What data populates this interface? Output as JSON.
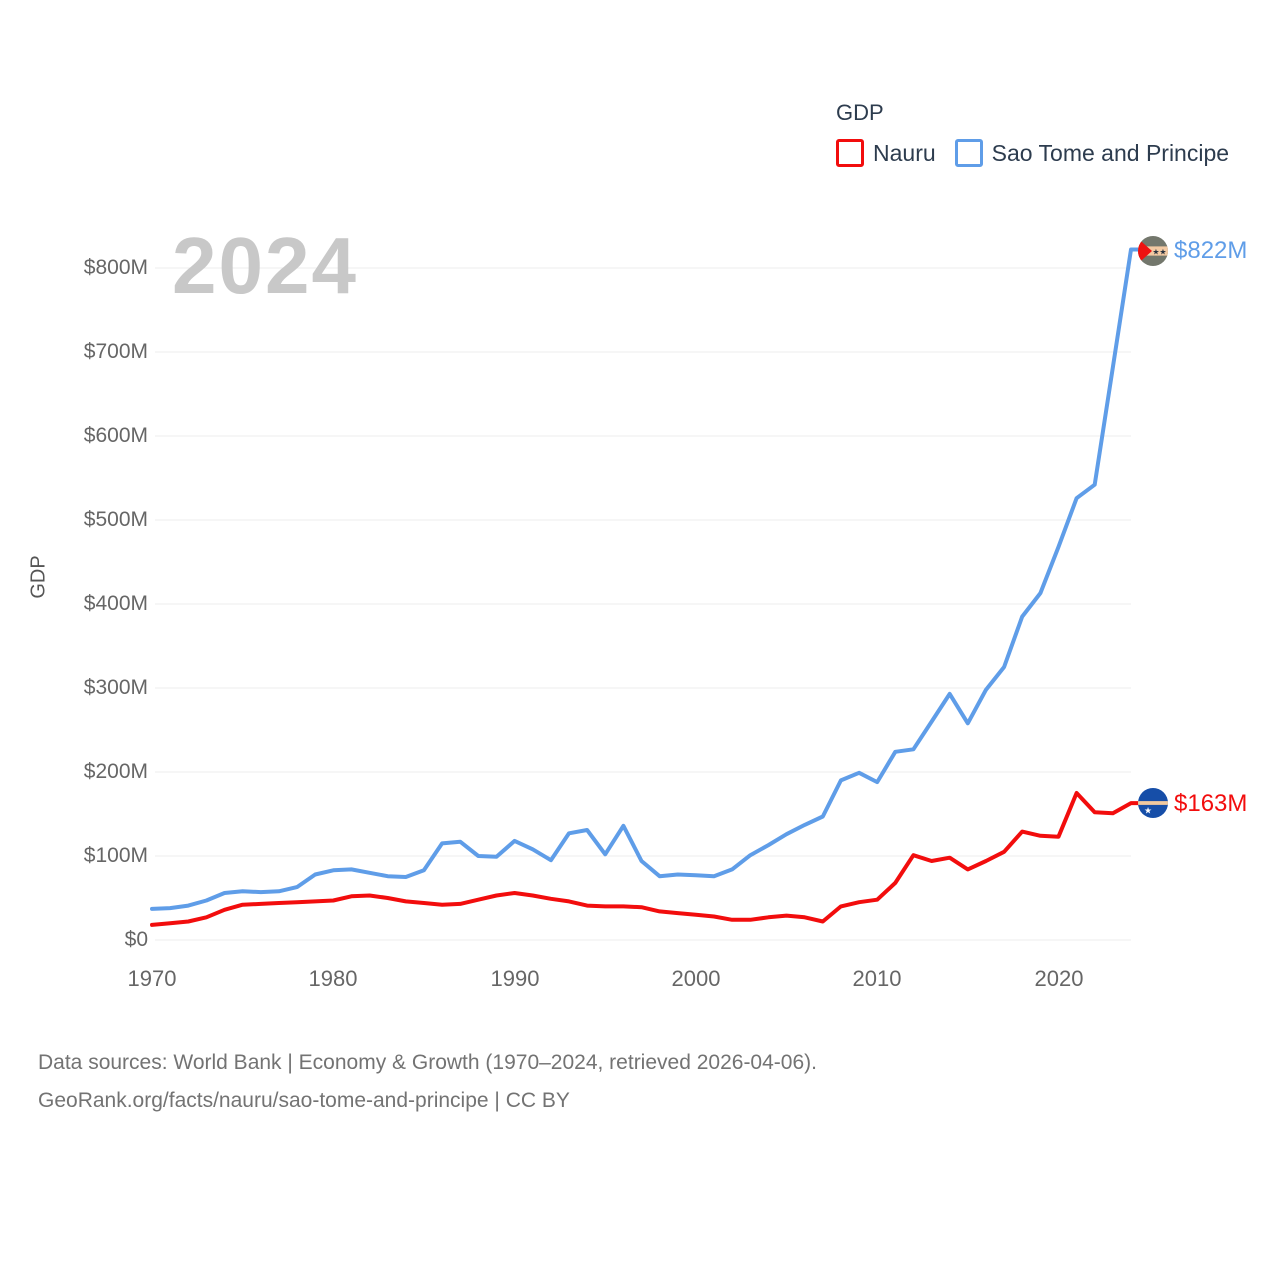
{
  "legend": {
    "title": "GDP",
    "items": [
      {
        "label": "Nauru",
        "color": "#f20d0d"
      },
      {
        "label": "Sao Tome and Principe",
        "color": "#5f9de8"
      }
    ]
  },
  "watermark": "2024",
  "y_axis": {
    "title": "GDP",
    "ticks": [
      "$0",
      "$100M",
      "$200M",
      "$300M",
      "$400M",
      "$500M",
      "$600M",
      "$700M",
      "$800M"
    ]
  },
  "x_axis": {
    "ticks": [
      "1970",
      "1980",
      "1990",
      "2000",
      "2010",
      "2020"
    ]
  },
  "end_labels": {
    "sao_tome": {
      "text": "$822M",
      "color": "#5f9de8"
    },
    "nauru": {
      "text": "$163M",
      "color": "#f20d0d"
    }
  },
  "footer": {
    "line1": "Data sources: World Bank | Economy & Growth (1970–2024, retrieved 2026-04-06).",
    "line2": "GeoRank.org/facts/nauru/sao-tome-and-principe | CC BY"
  },
  "chart_data": {
    "type": "line",
    "title": "GDP",
    "ylabel": "GDP",
    "xlabel": "",
    "x_range": [
      1970,
      2024
    ],
    "ylim": [
      0,
      800000000
    ],
    "y_tick_step": 100000000,
    "grid": true,
    "legend_position": "top-right",
    "units": "USD millions",
    "x": [
      1970,
      1971,
      1972,
      1973,
      1974,
      1975,
      1976,
      1977,
      1978,
      1979,
      1980,
      1981,
      1982,
      1983,
      1984,
      1985,
      1986,
      1987,
      1988,
      1989,
      1990,
      1991,
      1992,
      1993,
      1994,
      1995,
      1996,
      1997,
      1998,
      1999,
      2000,
      2001,
      2002,
      2003,
      2004,
      2005,
      2006,
      2007,
      2008,
      2009,
      2010,
      2011,
      2012,
      2013,
      2014,
      2015,
      2016,
      2017,
      2018,
      2019,
      2020,
      2021,
      2022,
      2023,
      2024
    ],
    "series": [
      {
        "name": "Nauru",
        "color": "#f20d0d",
        "final_label": "$163M",
        "values": [
          18,
          20,
          22,
          27,
          36,
          42,
          43,
          44,
          45,
          46,
          47,
          52,
          53,
          50,
          46,
          44,
          42,
          43,
          48,
          53,
          56,
          53,
          49,
          46,
          41,
          40,
          40,
          39,
          34,
          32,
          30,
          28,
          24,
          24,
          27,
          29,
          27,
          22,
          40,
          45,
          48,
          68,
          101,
          94,
          98,
          84,
          94,
          105,
          129,
          124,
          123,
          175,
          152,
          151,
          163
        ]
      },
      {
        "name": "Sao Tome and Principe",
        "color": "#5f9de8",
        "final_label": "$822M",
        "values": [
          37,
          38,
          41,
          47,
          56,
          58,
          57,
          58,
          63,
          78,
          83,
          84,
          80,
          76,
          75,
          83,
          115,
          117,
          100,
          99,
          118,
          108,
          95,
          127,
          131,
          102,
          136,
          94,
          76,
          78,
          77,
          76,
          84,
          101,
          113,
          126,
          137,
          147,
          190,
          199,
          188,
          224,
          227,
          260,
          293,
          258,
          298,
          325,
          385,
          413,
          468,
          526,
          542,
          682,
          822
        ]
      }
    ]
  }
}
